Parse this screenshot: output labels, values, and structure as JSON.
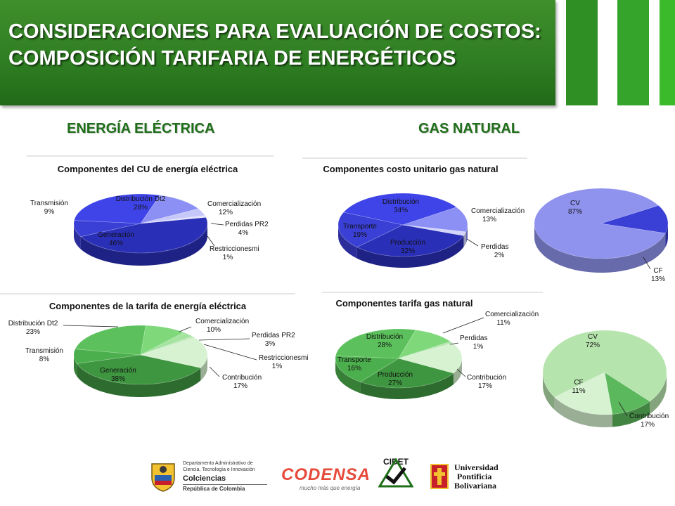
{
  "slide": {
    "title": "CONSIDERACIONES PARA EVALUACIÓN DE COSTOS: COMPOSICIÓN TARIFARIA DE ENERGÉTICOS",
    "section_left": "ENERGÍA ELÉCTRICA",
    "section_right": "GAS NATURAL",
    "colors": {
      "header_green": "#2e7d22",
      "bar1": "#2f8f24",
      "bar2": "#34a52a",
      "bar3": "#3bbb2c",
      "section_text": "#1f6f1a"
    }
  },
  "footer": {
    "colciencias": {
      "line1": "Departamento Administrativo de",
      "line2": "Ciencia, Tecnología e Innovación",
      "name": "Colciencias",
      "country": "República de Colombia"
    },
    "codensa": {
      "name": "CODENSA",
      "tagline": "mucho más que energía"
    },
    "cidet": {
      "name": "CIDET"
    },
    "upb": {
      "line1": "Universidad",
      "line2": "Pontificia",
      "line3": "Bolivariana"
    }
  },
  "chart_data": [
    {
      "type": "pie",
      "title": "Componentes del CU de energía eléctrica",
      "categories": [
        "Generación",
        "Transmisión",
        "Distribución Dt2",
        "Comercialización",
        "Perdidas PR2",
        "Restriccionesmi"
      ],
      "values": [
        46,
        9,
        28,
        12,
        4,
        1
      ],
      "labels": [
        "46%",
        "9%",
        "28%",
        "12%",
        "4%",
        "1%"
      ],
      "colors": [
        "#2a2fb8",
        "#3a3fd6",
        "#3f44e8",
        "#8c90f4",
        "#c6c8fa",
        "#e4e5fd"
      ]
    },
    {
      "type": "pie",
      "title": "Componentes de la tarifa de energía eléctrica",
      "categories": [
        "Generación",
        "Transmisión",
        "Distribución Dt2",
        "Comercialización",
        "Perdidas PR2",
        "Restriccionesmi",
        "Contribución"
      ],
      "values": [
        38,
        8,
        23,
        10,
        3,
        1,
        17
      ],
      "labels": [
        "38%",
        "8%",
        "23%",
        "10%",
        "3%",
        "1%",
        "17%"
      ],
      "colors": [
        "#3f9640",
        "#4caf4d",
        "#5cc15c",
        "#7fd97b",
        "#a5e3a0",
        "#c2ecbd",
        "#d6f2d1"
      ]
    },
    {
      "type": "pie",
      "title": "Componentes costo unitario gas natural",
      "categories": [
        "Producción",
        "Transporte",
        "Distribución",
        "Comercialización",
        "Perdidas"
      ],
      "values": [
        32,
        19,
        34,
        13,
        2
      ],
      "labels": [
        "32%",
        "19%",
        "34%",
        "13%",
        "2%"
      ],
      "colors": [
        "#2a2fb8",
        "#3a3fd6",
        "#3f44e8",
        "#8c90f4",
        "#d3d5fb"
      ]
    },
    {
      "type": "pie",
      "title": "",
      "categories": [
        "CV",
        "CF"
      ],
      "values": [
        87,
        13
      ],
      "labels": [
        "87%",
        "13%"
      ],
      "colors": [
        "#8f93ee",
        "#3a3fd6"
      ]
    },
    {
      "type": "pie",
      "title": "Componentes tarifa gas natural",
      "categories": [
        "Producción",
        "Transporte",
        "Distribución",
        "Comercialización",
        "Perdidas",
        "Contribución"
      ],
      "values": [
        27,
        16,
        28,
        11,
        1,
        17
      ],
      "labels": [
        "27%",
        "16%",
        "28%",
        "11%",
        "1%",
        "17%"
      ],
      "colors": [
        "#3f9640",
        "#4caf4d",
        "#5cc15c",
        "#7fd97b",
        "#b3e6ad",
        "#d6f2d1"
      ]
    },
    {
      "type": "pie",
      "title": "",
      "categories": [
        "CV",
        "CF",
        "Contribución"
      ],
      "values": [
        72,
        11,
        17
      ],
      "labels": [
        "72%",
        "11%",
        "17%"
      ],
      "colors": [
        "#b6e4ad",
        "#5cb85c",
        "#d6f2d1"
      ]
    }
  ]
}
